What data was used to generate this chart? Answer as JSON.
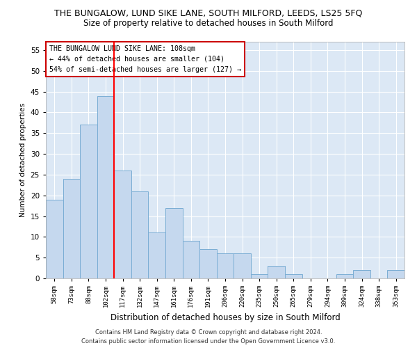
{
  "title": "THE BUNGALOW, LUND SIKE LANE, SOUTH MILFORD, LEEDS, LS25 5FQ",
  "subtitle": "Size of property relative to detached houses in South Milford",
  "xlabel": "Distribution of detached houses by size in South Milford",
  "ylabel": "Number of detached properties",
  "categories": [
    "58sqm",
    "73sqm",
    "88sqm",
    "102sqm",
    "117sqm",
    "132sqm",
    "147sqm",
    "161sqm",
    "176sqm",
    "191sqm",
    "206sqm",
    "220sqm",
    "235sqm",
    "250sqm",
    "265sqm",
    "279sqm",
    "294sqm",
    "309sqm",
    "324sqm",
    "338sqm",
    "353sqm"
  ],
  "values": [
    19,
    24,
    37,
    44,
    26,
    21,
    11,
    17,
    9,
    7,
    6,
    6,
    1,
    3,
    1,
    0,
    0,
    1,
    2,
    0,
    2
  ],
  "bar_color": "#c5d8ee",
  "bar_edge_color": "#7aadd4",
  "red_line_x": 3.5,
  "annotation_text": "THE BUNGALOW LUND SIKE LANE: 108sqm\n← 44% of detached houses are smaller (104)\n54% of semi-detached houses are larger (127) →",
  "annotation_box_color": "#ffffff",
  "annotation_box_edge": "#cc0000",
  "ylim": [
    0,
    57
  ],
  "yticks": [
    0,
    5,
    10,
    15,
    20,
    25,
    30,
    35,
    40,
    45,
    50,
    55
  ],
  "bg_color": "#dce8f5",
  "footer_line1": "Contains HM Land Registry data © Crown copyright and database right 2024.",
  "footer_line2": "Contains public sector information licensed under the Open Government Licence v3.0.",
  "title_fontsize": 9,
  "subtitle_fontsize": 8.5
}
